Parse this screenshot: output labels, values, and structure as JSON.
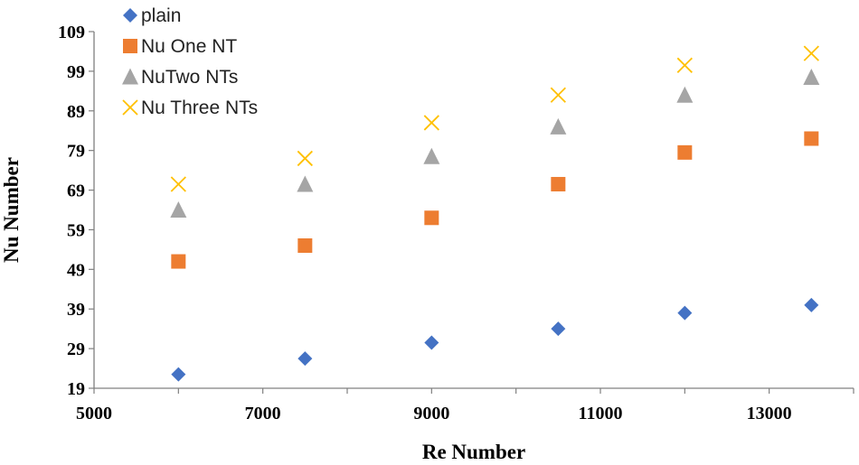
{
  "chart_data": {
    "type": "scatter",
    "xlabel": "Re Number",
    "ylabel": "Nu Number",
    "xlim": [
      5000,
      14000
    ],
    "ylim": [
      19,
      109
    ],
    "xticks": [
      5000,
      7000,
      9000,
      11000,
      13000
    ],
    "yticks": [
      19,
      29,
      39,
      49,
      59,
      69,
      79,
      89,
      99,
      109
    ],
    "grid": false,
    "legend_position": "top-left",
    "series": [
      {
        "name": "plain",
        "marker": "diamond",
        "color": "#4472C4",
        "x": [
          6000,
          7500,
          9000,
          10500,
          12000,
          13500
        ],
        "y": [
          22.5,
          26.5,
          30.5,
          34,
          38,
          40
        ]
      },
      {
        "name": "Nu One NT",
        "marker": "square",
        "color": "#ED7D31",
        "x": [
          6000,
          7500,
          9000,
          10500,
          12000,
          13500
        ],
        "y": [
          51,
          55,
          62,
          70.5,
          78.5,
          82
        ]
      },
      {
        "name": "NuTwo NTs",
        "marker": "triangle",
        "color": "#A5A5A5",
        "x": [
          6000,
          7500,
          9000,
          10500,
          12000,
          13500
        ],
        "y": [
          64,
          70.5,
          77.5,
          85,
          93,
          97.5
        ]
      },
      {
        "name": "Nu Three NTs",
        "marker": "x",
        "color": "#FFC000",
        "x": [
          6000,
          7500,
          9000,
          10500,
          12000,
          13500
        ],
        "y": [
          70.5,
          77,
          86,
          93,
          100.5,
          103.5
        ]
      }
    ]
  }
}
